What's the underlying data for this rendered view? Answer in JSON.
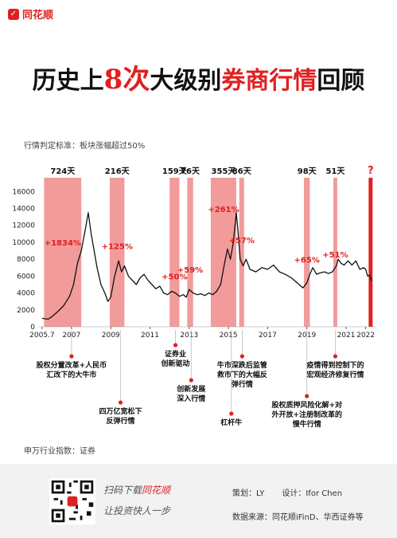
{
  "brand": {
    "name": "同花顺"
  },
  "title": {
    "part1": "历史上",
    "part2": "8次",
    "part3": "大级别",
    "part4": "券商行情",
    "part5": "回顾"
  },
  "subtitle": "行情判定标准：板块涨幅超过50%",
  "index_note": "申万行业指数：证券",
  "footer": {
    "slogan_prefix": "扫码下载",
    "slogan_brand": "同花顺",
    "slogan_line2": "让投资快人一步",
    "planner": "策划：LY",
    "designer": "设计：Ifor Chen",
    "source": "数据来源：同花顺iFinD、华西证券等"
  },
  "colors": {
    "accent": "#e02020",
    "band": "#f08a8a",
    "line": "#111111"
  },
  "chart_data": {
    "type": "line",
    "x_ticks": [
      "2005.7",
      "2007",
      "2009",
      "2011",
      "2013",
      "2015",
      "2017",
      "2019",
      "2021",
      "2022"
    ],
    "x_tick_values": [
      2005.5,
      2007.0,
      2009.0,
      2011.0,
      2013.0,
      2015.0,
      2017.0,
      2019.0,
      2021.0,
      2022.0
    ],
    "y_ticks": [
      0,
      2000,
      4000,
      6000,
      8000,
      10000,
      12000,
      14000,
      16000
    ],
    "xlim": [
      2005.3,
      2022.5
    ],
    "ylim": [
      0,
      16500
    ],
    "series": [
      {
        "x": [
          2005.5,
          2005.8,
          2006.0,
          2006.3,
          2006.6,
          2006.9,
          2007.1,
          2007.3,
          2007.5,
          2007.7,
          2007.85,
          2008.0,
          2008.15,
          2008.3,
          2008.5,
          2008.7,
          2008.85,
          2009.0,
          2009.2,
          2009.4,
          2009.55,
          2009.7,
          2009.9,
          2010.1,
          2010.3,
          2010.5,
          2010.7,
          2010.9,
          2011.1,
          2011.3,
          2011.5,
          2011.7,
          2011.9,
          2012.1,
          2012.3,
          2012.5,
          2012.7,
          2012.85,
          2013.0,
          2013.2,
          2013.4,
          2013.6,
          2013.8,
          2014.0,
          2014.2,
          2014.4,
          2014.6,
          2014.8,
          2014.95,
          2015.1,
          2015.25,
          2015.4,
          2015.5,
          2015.6,
          2015.75,
          2015.9,
          2016.1,
          2016.4,
          2016.7,
          2017.0,
          2017.3,
          2017.6,
          2017.9,
          2018.2,
          2018.5,
          2018.8,
          2019.0,
          2019.15,
          2019.3,
          2019.5,
          2019.7,
          2019.9,
          2020.1,
          2020.3,
          2020.5,
          2020.6,
          2020.75,
          2020.9,
          2021.1,
          2021.3,
          2021.5,
          2021.7,
          2021.9,
          2022.0,
          2022.1,
          2022.2,
          2022.3
        ],
        "y": [
          1000,
          900,
          1200,
          1800,
          2500,
          3600,
          5000,
          7500,
          9000,
          11500,
          13500,
          11000,
          9000,
          7000,
          5000,
          4000,
          3000,
          3500,
          6000,
          7800,
          6500,
          7200,
          6000,
          5500,
          5000,
          5800,
          6200,
          5500,
          5000,
          4500,
          4800,
          4000,
          3800,
          4200,
          4000,
          3600,
          3800,
          3500,
          4400,
          4000,
          3800,
          3900,
          3700,
          4000,
          3800,
          4200,
          5000,
          7500,
          9200,
          8000,
          10000,
          13500,
          11000,
          8000,
          7200,
          8000,
          6800,
          6500,
          7000,
          6800,
          7300,
          6500,
          6200,
          5800,
          5200,
          4600,
          5200,
          6200,
          7000,
          6200,
          6400,
          6500,
          6300,
          6500,
          7200,
          8000,
          7500,
          7300,
          7800,
          7300,
          7800,
          6800,
          7000,
          6800,
          6000,
          6100,
          5400
        ]
      }
    ],
    "rallies": [
      {
        "start": 2005.6,
        "end": 2007.5,
        "days": "724天",
        "pct": "+1834%",
        "pct_y": 9600
      },
      {
        "start": 2008.95,
        "end": 2009.7,
        "days": "216天",
        "pct": "+125%",
        "pct_y": 9200
      },
      {
        "start": 2012.0,
        "end": 2012.5,
        "days": "159天",
        "pct": "+50%",
        "pct_y": 5600
      },
      {
        "start": 2012.9,
        "end": 2013.2,
        "days": "76天",
        "pct": "+59%",
        "pct_y": 6400
      },
      {
        "start": 2014.1,
        "end": 2015.4,
        "days": "355天",
        "pct": "+261%",
        "pct_y": 13600
      },
      {
        "start": 2015.55,
        "end": 2015.8,
        "days": "86天",
        "pct": "+57%",
        "pct_y": 9900
      },
      {
        "start": 2018.85,
        "end": 2019.15,
        "days": "98天",
        "pct": "+65%",
        "pct_y": 7600
      },
      {
        "start": 2020.35,
        "end": 2020.55,
        "days": "51天",
        "pct": "+51%",
        "pct_y": 8200
      },
      {
        "start": 2022.15,
        "end": 2022.35,
        "days": "?",
        "pct": "",
        "pct_y": 0
      }
    ],
    "annotations": [
      {
        "lines": [
          "股权分置改革+人民币",
          "汇改下的大牛市"
        ],
        "x": 2007.0
      },
      {
        "lines": [
          "四万亿宽松下",
          "反弹行情"
        ],
        "x": 2009.5
      },
      {
        "lines": [
          "证券业",
          "创新驱动"
        ],
        "x": 2012.3
      },
      {
        "lines": [
          "创新发展",
          "深入行情"
        ],
        "x": 2013.1
      },
      {
        "lines": [
          "杠杆牛"
        ],
        "x": 2015.15
      },
      {
        "lines": [
          "牛市深跌后监管",
          "救市下的大幅反",
          "弹行情"
        ],
        "x": 2015.7
      },
      {
        "lines": [
          "股权质押风险化解+对",
          "外开放+注册制改革的",
          "慢牛行情"
        ],
        "x": 2019.0
      },
      {
        "lines": [
          "疫情得到控制下的",
          "宏观经济修复行情"
        ],
        "x": 2020.45
      }
    ]
  }
}
